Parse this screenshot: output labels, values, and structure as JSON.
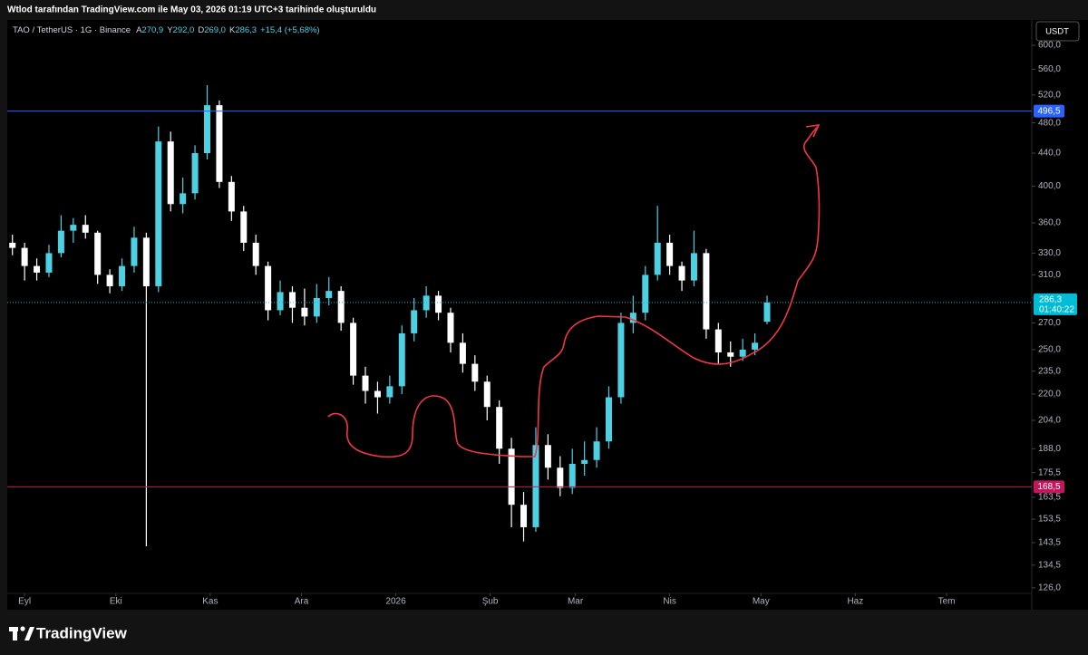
{
  "header": {
    "attribution": "Wtlod tarafından TradingView.com ile May 03, 2026 01:19 UTC+3 tarihinde oluşturuldu",
    "symbol": "TAO / TetherUS · 1G · Binance",
    "ohlc": [
      {
        "key": "A",
        "value": "270,9"
      },
      {
        "key": "Y",
        "value": "292,0"
      },
      {
        "key": "D",
        "value": "269,0"
      },
      {
        "key": "K",
        "value": "286,3"
      }
    ],
    "change": "+15,4 (+5,68%)"
  },
  "chart_data": {
    "type": "candlestick",
    "log_scale": true,
    "grid": false,
    "currency": "USDT",
    "up_color": "#4dd0e1",
    "down_color": "#ffffff",
    "x": [
      -4,
      0,
      4,
      8,
      12,
      16,
      20,
      24,
      28,
      32,
      36,
      40,
      44,
      48,
      52,
      56,
      60,
      64,
      68,
      72,
      76,
      80,
      84,
      88,
      92,
      96,
      100,
      104,
      108,
      112,
      116,
      120,
      124,
      128,
      132,
      136,
      140,
      144,
      148,
      152,
      156,
      160,
      164,
      168,
      172,
      176,
      180,
      184,
      188,
      192,
      196,
      200,
      204,
      208,
      212,
      216,
      220,
      224,
      228,
      232,
      236,
      240,
      244
    ],
    "open": [
      340,
      335,
      318,
      312,
      330,
      352,
      358,
      350,
      310,
      300,
      318,
      345,
      300,
      455,
      380,
      392,
      440,
      505,
      405,
      372,
      340,
      318,
      280,
      295,
      282,
      275,
      290,
      296,
      270,
      232,
      222,
      218,
      225,
      262,
      280,
      292,
      278,
      255,
      240,
      228,
      212,
      188,
      160,
      150,
      190,
      178,
      168,
      180,
      182,
      192,
      218,
      270,
      278,
      310,
      340,
      318,
      305,
      330,
      265,
      248,
      245,
      250,
      270.9
    ],
    "high": [
      348,
      340,
      325,
      338,
      368,
      365,
      368,
      352,
      315,
      325,
      356,
      350,
      475,
      468,
      410,
      450,
      535,
      512,
      412,
      378,
      348,
      322,
      305,
      300,
      298,
      302,
      308,
      300,
      274,
      238,
      228,
      232,
      268,
      290,
      300,
      296,
      282,
      262,
      246,
      232,
      216,
      194,
      166,
      200,
      196,
      184,
      188,
      192,
      200,
      225,
      278,
      292,
      318,
      378,
      348,
      322,
      352,
      334,
      270,
      256,
      258,
      262,
      292
    ],
    "low": [
      328,
      305,
      305,
      308,
      326,
      340,
      344,
      302,
      294,
      296,
      312,
      142,
      295,
      372,
      370,
      385,
      432,
      398,
      362,
      332,
      310,
      272,
      276,
      270,
      268,
      270,
      284,
      264,
      226,
      214,
      208,
      214,
      220,
      256,
      274,
      272,
      248,
      234,
      222,
      204,
      180,
      150,
      144,
      148,
      172,
      164,
      165,
      174,
      178,
      188,
      214,
      262,
      272,
      305,
      310,
      296,
      300,
      258,
      240,
      238,
      242,
      246,
      269
    ],
    "close": [
      335,
      318,
      312,
      330,
      352,
      358,
      350,
      310,
      300,
      318,
      345,
      300,
      455,
      380,
      392,
      440,
      505,
      405,
      372,
      340,
      318,
      280,
      295,
      282,
      275,
      290,
      296,
      270,
      232,
      222,
      218,
      225,
      262,
      280,
      292,
      278,
      255,
      240,
      228,
      212,
      188,
      160,
      150,
      190,
      178,
      168,
      180,
      182,
      192,
      218,
      270,
      278,
      310,
      340,
      318,
      305,
      330,
      265,
      248,
      245,
      250,
      255,
      286.3
    ],
    "xlim": [
      -5.7,
      331
    ],
    "ylim": [
      124,
      645.4
    ],
    "xticks": [
      {
        "value": 0,
        "label": "Eyl"
      },
      {
        "value": 30,
        "label": "Eki"
      },
      {
        "value": 61,
        "label": "Kas"
      },
      {
        "value": 91,
        "label": "Ara"
      },
      {
        "value": 122,
        "label": "2026"
      },
      {
        "value": 153,
        "label": "Şub"
      },
      {
        "value": 181,
        "label": "Mar"
      },
      {
        "value": 212,
        "label": "Nis"
      },
      {
        "value": 242,
        "label": "May"
      },
      {
        "value": 273,
        "label": "Haz"
      },
      {
        "value": 303,
        "label": "Tem"
      }
    ],
    "yticks": [
      {
        "value": 600,
        "label": "600,0"
      },
      {
        "value": 560,
        "label": "560,0"
      },
      {
        "value": 520,
        "label": "520,0"
      },
      {
        "value": 480,
        "label": "480,0"
      },
      {
        "value": 440,
        "label": "440,0"
      },
      {
        "value": 400,
        "label": "400,0"
      },
      {
        "value": 360,
        "label": "360,0"
      },
      {
        "value": 330,
        "label": "330,0"
      },
      {
        "value": 310,
        "label": "310,0"
      },
      {
        "value": 290,
        "label": "290,0"
      },
      {
        "value": 270,
        "label": "270,0"
      },
      {
        "value": 250,
        "label": "250,0"
      },
      {
        "value": 235,
        "label": "235,0"
      },
      {
        "value": 220,
        "label": "220,0"
      },
      {
        "value": 204,
        "label": "204,0"
      },
      {
        "value": 188,
        "label": "188,0"
      },
      {
        "value": 175.5,
        "label": "175,5"
      },
      {
        "value": 163.5,
        "label": "163,5"
      },
      {
        "value": 153.5,
        "label": "153,5"
      },
      {
        "value": 143.5,
        "label": "143,5"
      },
      {
        "value": 134.5,
        "label": "134,5"
      },
      {
        "value": 126,
        "label": "126,0"
      }
    ],
    "hlines": [
      {
        "value": 496.5,
        "label": "496,5",
        "color": "#2962ff"
      },
      {
        "value": 168.5,
        "label": "168,5",
        "color": "#c2185b"
      }
    ],
    "last_price": {
      "value": 286.3,
      "label": "286,3",
      "countdown": "01:40:22",
      "color": "#00bcd4"
    }
  },
  "footer": {
    "brand": "TradingView"
  }
}
